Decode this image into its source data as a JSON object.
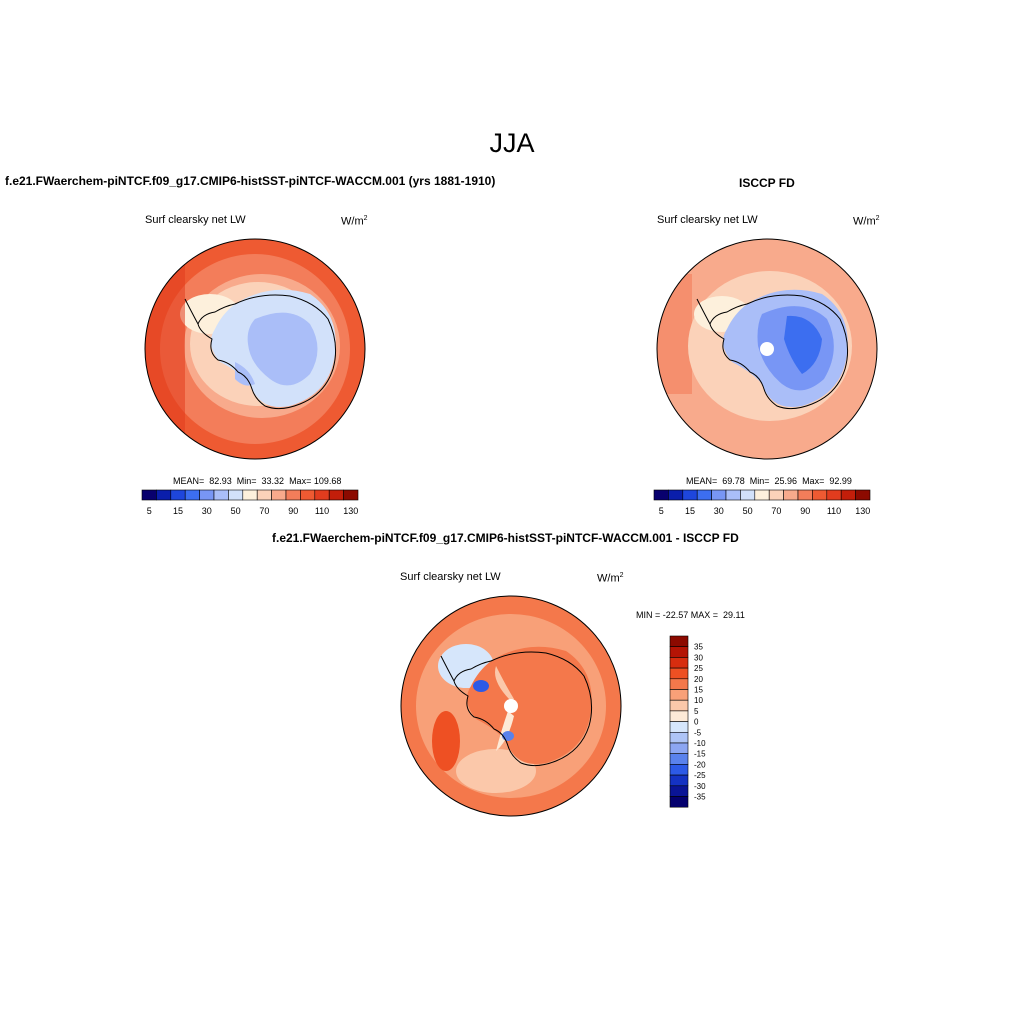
{
  "season": "JJA",
  "top_left": {
    "title": "f.e21.FWaerchem-piNTCF.f09_g17.CMIP6-histSST-piNTCF-WACCM.001 (yrs 1881-1910)",
    "variable": "Surf clearsky net LW",
    "units": "W/m",
    "units_sup": "2",
    "stats": "MEAN=  82.93  Min=  33.32  Max= 109.68"
  },
  "top_right": {
    "title": "ISCCP FD",
    "variable": "Surf clearsky net LW",
    "units": "W/m",
    "units_sup": "2",
    "stats": "MEAN=  69.78  Min=  25.96  Max=  92.99"
  },
  "bottom": {
    "title": "f.e21.FWaerchem-piNTCF.f09_g17.CMIP6-histSST-piNTCF-WACCM.001 - ISCCP FD",
    "variable": "Surf clearsky net LW",
    "units": "W/m",
    "units_sup": "2",
    "minmax": "MIN = -22.57 MAX =  29.11"
  },
  "abs_colorbar": {
    "tick_labels": [
      "5",
      "15",
      "30",
      "50",
      "70",
      "90",
      "110",
      "130"
    ],
    "colors": [
      "#08006e",
      "#0a1eab",
      "#1e46dc",
      "#3c6ef0",
      "#7896f5",
      "#aabef8",
      "#d2e1fa",
      "#fdf0dc",
      "#fbd2b9",
      "#f8aa8c",
      "#f37d5a",
      "#ee5a32",
      "#e13c1e",
      "#c31e0a",
      "#8c0a00"
    ]
  },
  "diff_colorbar": {
    "tick_labels": [
      "35",
      "30",
      "25",
      "20",
      "15",
      "10",
      "5",
      "0",
      "-5",
      "-10",
      "-15",
      "-20",
      "-25",
      "-30",
      "-35"
    ],
    "colors": [
      "#8c0a00",
      "#b41405",
      "#d72d0f",
      "#ee5023",
      "#f4784b",
      "#f8a078",
      "#fbc8aa",
      "#fdead7",
      "#d6e6fb",
      "#aec4f6",
      "#8ca6f2",
      "#5a82ec",
      "#2d5ae6",
      "#1432c3",
      "#0a1496",
      "#04006e"
    ]
  }
}
